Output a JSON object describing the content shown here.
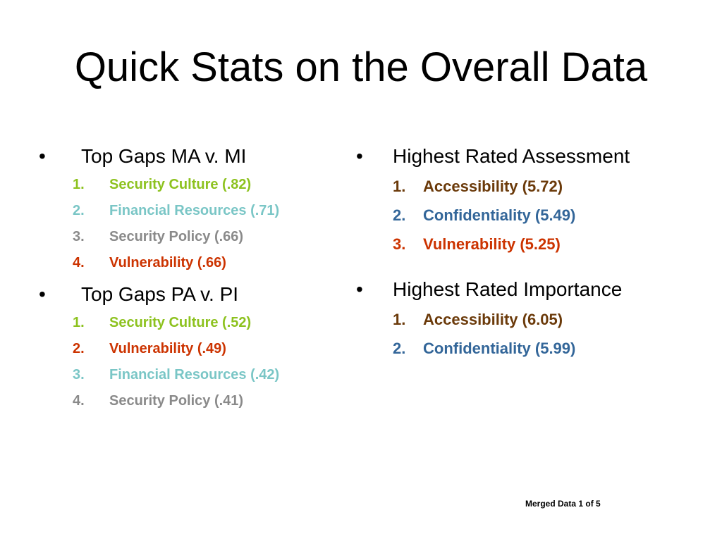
{
  "title": "Quick Stats on the Overall Data",
  "left_column": {
    "sections": [
      {
        "bullet": "•",
        "heading": "Top Gaps MA v. MI",
        "items": [
          {
            "num": "1.",
            "text": "Security Culture (.82)",
            "color": "#8dc21f"
          },
          {
            "num": "2.",
            "text": "Financial Resources (.71)",
            "color": "#7ac6c6"
          },
          {
            "num": "3.",
            "text": "Security Policy (.66)",
            "color": "#8a8a8a"
          },
          {
            "num": "4.",
            "text": "Vulnerability (.66)",
            "color": "#cc3300"
          }
        ]
      },
      {
        "bullet": "•",
        "heading": "Top Gaps PA v. PI",
        "items": [
          {
            "num": "1.",
            "text": "Security Culture (.52)",
            "color": "#8dc21f"
          },
          {
            "num": "2.",
            "text": "Vulnerability (.49)",
            "color": "#cc3300"
          },
          {
            "num": "3.",
            "text": "Financial Resources (.42)",
            "color": "#7ac6c6"
          },
          {
            "num": "4.",
            "text": "Security Policy (.41)",
            "color": "#8a8a8a"
          }
        ]
      }
    ]
  },
  "right_column": {
    "sections": [
      {
        "bullet": "•",
        "heading": "Highest Rated Assessment",
        "items": [
          {
            "num": "1.",
            "text": "Accessibility (5.72)",
            "color": "#6b3a0a"
          },
          {
            "num": "2.",
            "text": "Confidentiality (5.49)",
            "color": "#336699"
          },
          {
            "num": "3.",
            "text": "Vulnerability (5.25)",
            "color": "#cc3300"
          }
        ]
      },
      {
        "bullet": "•",
        "heading": "Highest Rated Importance",
        "items": [
          {
            "num": "1.",
            "text": "Accessibility (6.05)",
            "color": "#6b3a0a"
          },
          {
            "num": "2.",
            "text": "Confidentiality (5.99)",
            "color": "#336699"
          }
        ]
      }
    ]
  },
  "footer": "Merged Data 1 of 5"
}
